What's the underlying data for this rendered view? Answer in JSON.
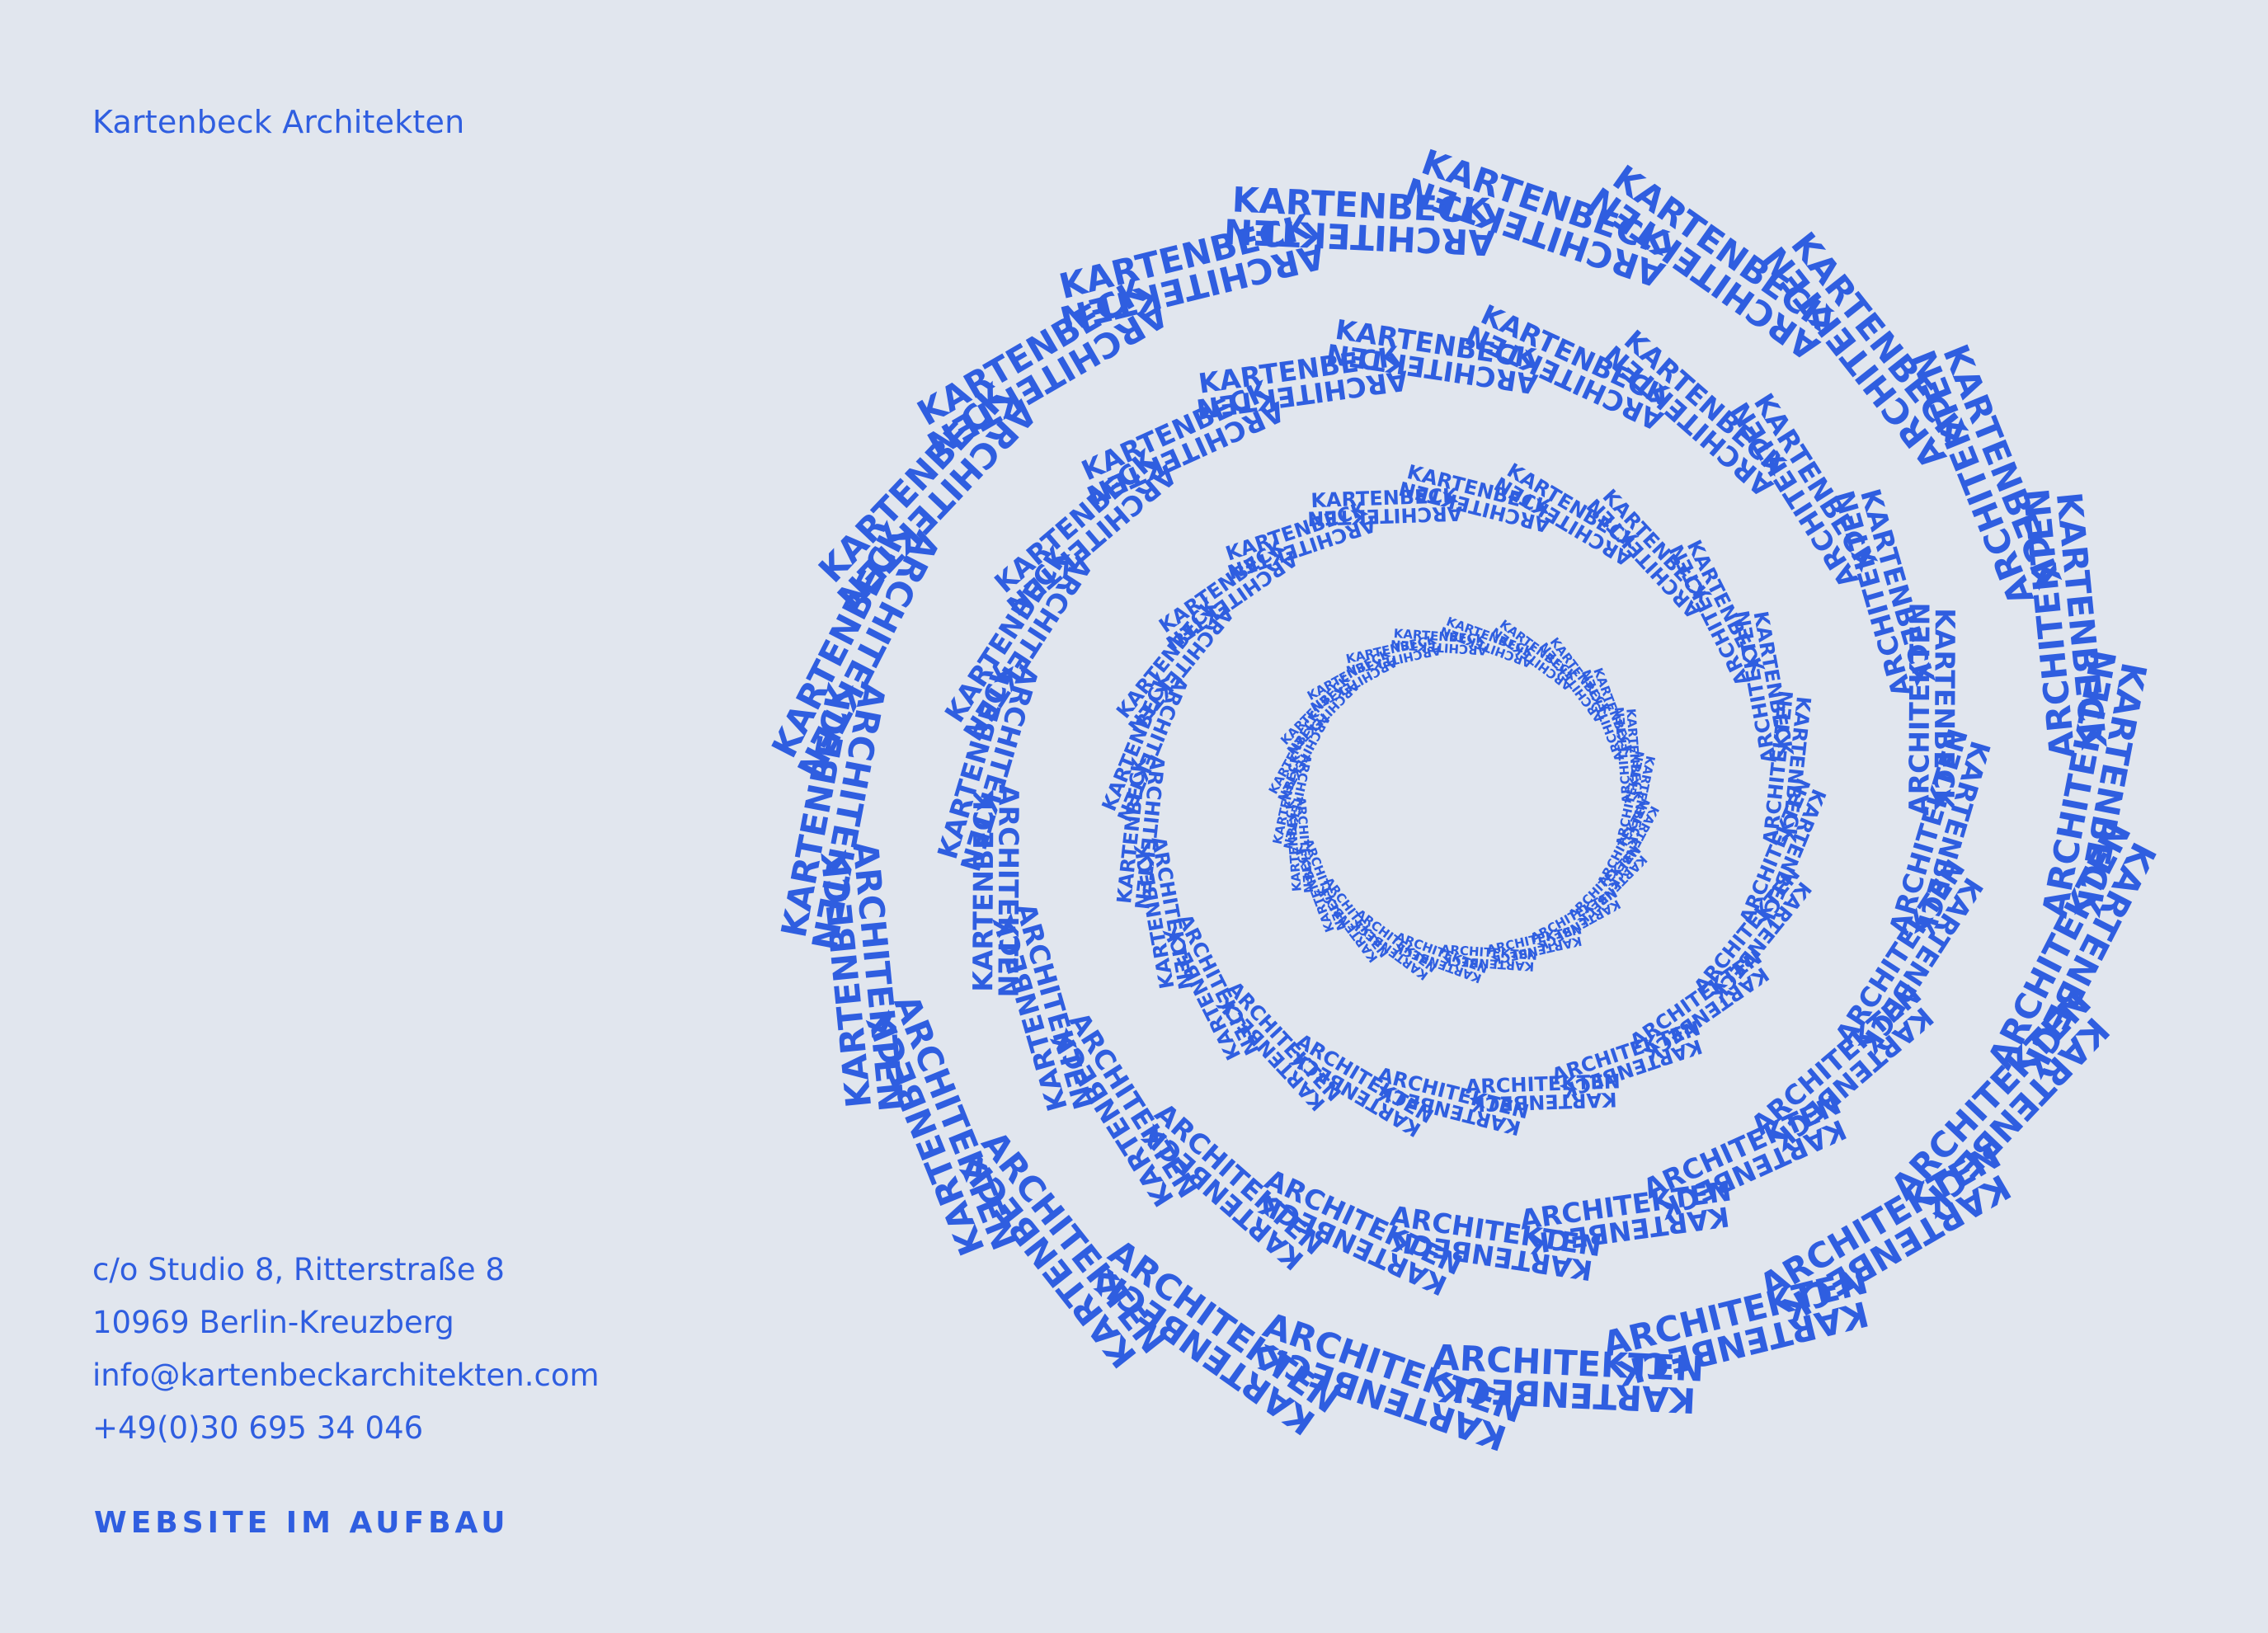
{
  "brand": {
    "name": "Kartenbeck Architekten"
  },
  "contact": {
    "address_line1": "c/o Studio 8, Ritterstraße 8",
    "address_line2": "10969 Berlin-Kreuzberg",
    "email": "info@kartenbeckarchitekten.com",
    "phone": "+49(0)30 695 34 046"
  },
  "notice": "WEBSITE IM AUFBAU",
  "logo": {
    "word_top": "KARTENBECK",
    "word_bottom": "ARCHITEKTEN",
    "color": "#2f5ee0"
  },
  "background_color": "#e1e6ee"
}
